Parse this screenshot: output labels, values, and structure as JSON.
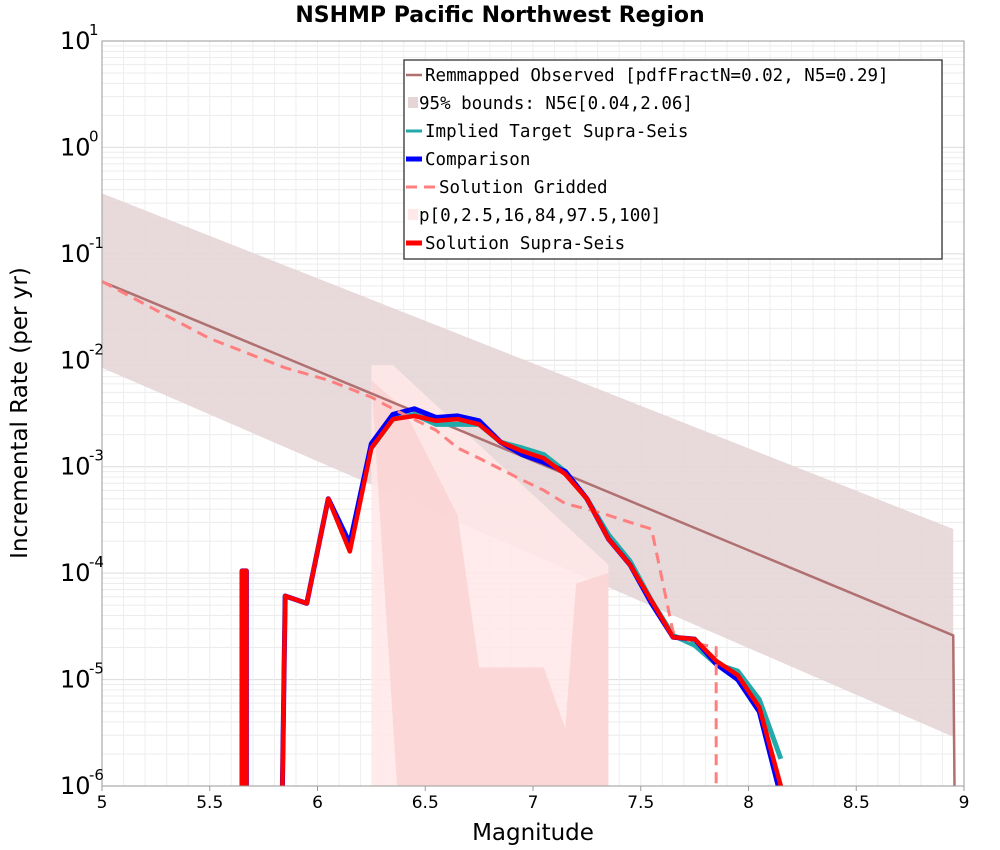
{
  "chart_data": {
    "type": "line",
    "title": "NSHMP Pacific Northwest Region",
    "xlabel": "Magnitude",
    "ylabel": "Incremental Rate (per yr)",
    "xlim": [
      5,
      9
    ],
    "ylim": [
      1e-06,
      10
    ],
    "yscale": "log",
    "grid": true,
    "legend_position": "top-right",
    "x_ticks": [
      "5",
      "5.5",
      "6",
      "6.5",
      "7",
      "7.5",
      "8",
      "8.5",
      "9"
    ],
    "y_ticks": [
      {
        "base": "10",
        "exp": "-6",
        "value": 1e-06
      },
      {
        "base": "10",
        "exp": "-5",
        "value": 1e-05
      },
      {
        "base": "10",
        "exp": "-4",
        "value": 0.0001
      },
      {
        "base": "10",
        "exp": "-3",
        "value": 0.001
      },
      {
        "base": "10",
        "exp": "-2",
        "value": 0.01
      },
      {
        "base": "10",
        "exp": "-1",
        "value": 0.1
      },
      {
        "base": "10",
        "exp": "0",
        "value": 1
      },
      {
        "base": "10",
        "exp": "1",
        "value": 10
      }
    ],
    "colors": {
      "observed": "#b07070",
      "bounds": "#e6d5d7",
      "implied": "#22aaaa",
      "comparison": "#0000ff",
      "gridded": "#ff7f7f",
      "percentile_outer": "#ffe8e8",
      "percentile_inner": "#fcd3d3",
      "supra": "#ff0000"
    },
    "series": [
      {
        "name": "Remmapped Observed [pdfFractN=0.02, N5=0.29]",
        "kind": "line",
        "color": "#b07070",
        "x": [
          5.0,
          8.95,
          8.96
        ],
        "y": [
          0.055,
          2.6e-05,
          1e-07
        ]
      },
      {
        "name": "95% bounds: N5∈[0.04,2.06]",
        "kind": "band",
        "color": "#e6d5d7",
        "x": [
          5.0,
          8.95
        ],
        "upper": [
          0.37,
          0.00026
        ],
        "lower": [
          0.0085,
          2.9e-06
        ]
      },
      {
        "name": "Implied Target Supra-Seis",
        "kind": "line",
        "color": "#22aaaa",
        "x": [
          6.25,
          6.35,
          6.45,
          6.55,
          6.65,
          6.75,
          6.85,
          6.95,
          7.05,
          7.15,
          7.25,
          7.35,
          7.45,
          7.55,
          7.65,
          7.75,
          7.85,
          7.95,
          8.05,
          8.15
        ],
        "y": [
          0.0015,
          0.0028,
          0.0031,
          0.0025,
          0.0025,
          0.0025,
          0.0017,
          0.0015,
          0.0013,
          0.0009,
          0.0005,
          0.00023,
          0.00013,
          5.5e-05,
          2.6e-05,
          2.1e-05,
          1.4e-05,
          1.2e-05,
          6.5e-06,
          1.8e-06
        ]
      },
      {
        "name": "Comparison",
        "kind": "line",
        "color": "#0000ff",
        "x": [
          5.65,
          5.65,
          5.67,
          5.67,
          5.83,
          5.85,
          5.95,
          6.05,
          6.15,
          6.25,
          6.35,
          6.45,
          6.55,
          6.65,
          6.75,
          6.85,
          6.95,
          7.05,
          7.15,
          7.25,
          7.35,
          7.45,
          7.55,
          7.65,
          7.75,
          7.85,
          7.95,
          8.05,
          8.15
        ],
        "y": [
          1e-07,
          0.000105,
          0.000105,
          1e-07,
          1e-07,
          6.1e-05,
          5.2e-05,
          0.0005,
          0.00019,
          0.00165,
          0.0031,
          0.0035,
          0.0029,
          0.003,
          0.0027,
          0.0017,
          0.0013,
          0.0011,
          0.0009,
          0.0005,
          0.00021,
          0.00012,
          5.2e-05,
          2.5e-05,
          2.4e-05,
          1.4e-05,
          1e-05,
          5e-06,
          8e-07
        ]
      },
      {
        "name": "Solution Gridded",
        "kind": "dashed",
        "color": "#ff7f7f",
        "x": [
          5.0,
          5.5,
          5.85,
          6.05,
          6.25,
          6.35,
          6.55,
          6.65,
          6.75,
          6.95,
          7.05,
          7.15,
          7.25,
          7.35,
          7.45,
          7.55,
          7.65,
          7.75,
          7.85,
          7.85
        ],
        "y": [
          0.055,
          0.016,
          0.0085,
          0.0065,
          0.0045,
          0.0035,
          0.0022,
          0.0015,
          0.0012,
          0.00075,
          0.0006,
          0.00045,
          0.0004,
          0.00035,
          0.0003,
          0.00026,
          2.8e-05,
          2.2e-05,
          2e-05,
          1e-07
        ]
      },
      {
        "name": "p[0,2.5,16,84,97.5,100]",
        "kind": "band",
        "color": "#ffe8e8",
        "x": [
          6.25,
          6.35,
          7.35,
          7.35
        ],
        "upper": [
          0.009,
          0.009,
          0.00012,
          1e-07
        ],
        "lower": [
          1e-07,
          1e-07,
          1e-07,
          1e-07
        ]
      },
      {
        "name": "Solution Supra-Seis",
        "kind": "line",
        "color": "#ff0000",
        "x": [
          5.65,
          5.65,
          5.67,
          5.67,
          5.83,
          5.85,
          5.95,
          6.05,
          6.15,
          6.25,
          6.35,
          6.45,
          6.55,
          6.65,
          6.75,
          6.85,
          6.95,
          7.05,
          7.15,
          7.25,
          7.35,
          7.45,
          7.55,
          7.65,
          7.75,
          7.85,
          7.95,
          8.05,
          8.15
        ],
        "y": [
          1e-07,
          0.000105,
          0.000105,
          1e-07,
          1e-07,
          6.1e-05,
          5.2e-05,
          0.0005,
          0.00016,
          0.0015,
          0.0028,
          0.003,
          0.0027,
          0.0028,
          0.0025,
          0.0017,
          0.0014,
          0.0012,
          0.00085,
          0.0005,
          0.00021,
          0.00012,
          5.5e-05,
          2.5e-05,
          2.4e-05,
          1.5e-05,
          1.1e-05,
          5.5e-06,
          1e-06
        ]
      }
    ]
  }
}
